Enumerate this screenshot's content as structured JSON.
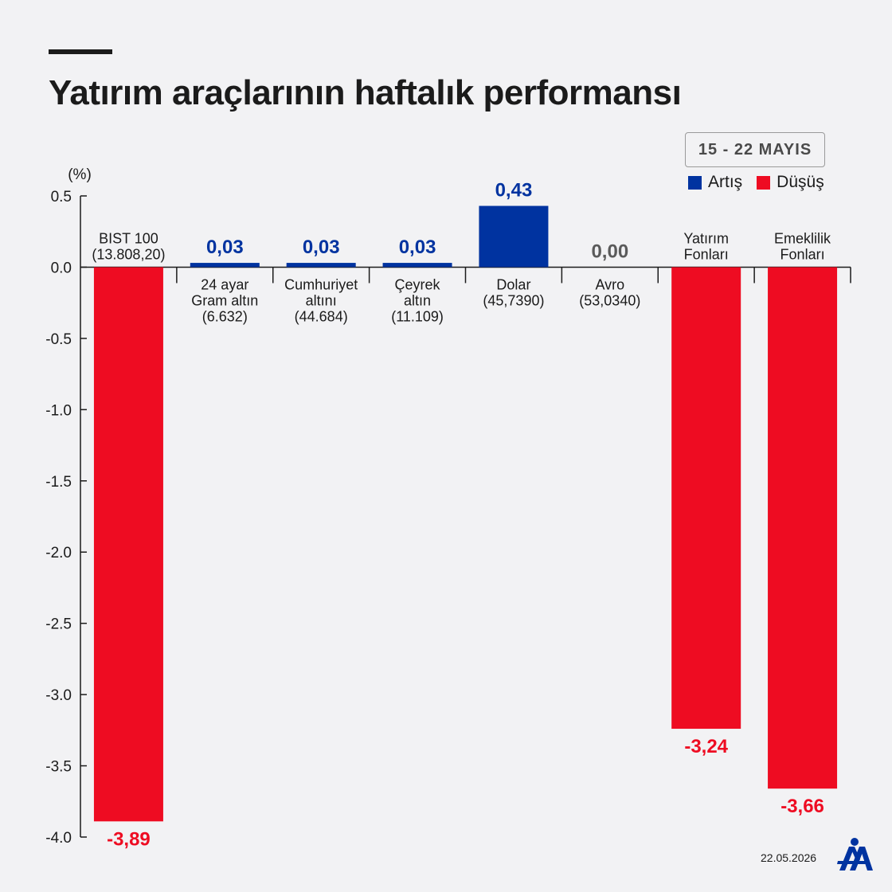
{
  "header": {
    "title": "Yatırım araçlarının haftalık performansı",
    "date_range": "15 - 22 MAYIS"
  },
  "legend": [
    {
      "label": "Artış",
      "color": "#0033a0"
    },
    {
      "label": "Düşüş",
      "color": "#ee0c22"
    }
  ],
  "footer": {
    "date": "22.05.2026",
    "logo": "AA"
  },
  "chart_data": {
    "type": "bar",
    "unit_label": "(%)",
    "ylim": [
      -4.0,
      0.5
    ],
    "yticks": [
      0.5,
      0.0,
      -0.5,
      -1.0,
      -1.5,
      -2.0,
      -2.5,
      -3.0,
      -3.5,
      -4.0
    ],
    "ytick_labels": [
      "0.5",
      "0.0",
      "-0.5",
      "-1.0",
      "-1.5",
      "-2.0",
      "-2.5",
      "-3.0",
      "-3.5",
      "-4.0"
    ],
    "grid": false,
    "legend_position": "top-right",
    "colors": {
      "increase": "#0033a0",
      "decrease": "#ee0c22",
      "flat": "#5a5a5a"
    },
    "categories": [
      {
        "lines": [
          "BIST 100",
          "(13.808,20)"
        ],
        "value": -3.89,
        "label": "-3,89"
      },
      {
        "lines": [
          "24 ayar",
          "Gram altın",
          "(6.632)"
        ],
        "value": 0.03,
        "label": "0,03"
      },
      {
        "lines": [
          "Cumhuriyet",
          "altını",
          "(44.684)"
        ],
        "value": 0.03,
        "label": "0,03"
      },
      {
        "lines": [
          "Çeyrek",
          "altın",
          "(11.109)"
        ],
        "value": 0.03,
        "label": "0,03"
      },
      {
        "lines": [
          "Dolar",
          "(45,7390)"
        ],
        "value": 0.43,
        "label": "0,43"
      },
      {
        "lines": [
          "Avro",
          "(53,0340)"
        ],
        "value": 0.0,
        "label": "0,00"
      },
      {
        "lines": [
          "Yatırım",
          "Fonları"
        ],
        "value": -3.24,
        "label": "-3,24"
      },
      {
        "lines": [
          "Emeklilik",
          "Fonları"
        ],
        "value": -3.66,
        "label": "-3,66"
      }
    ]
  }
}
